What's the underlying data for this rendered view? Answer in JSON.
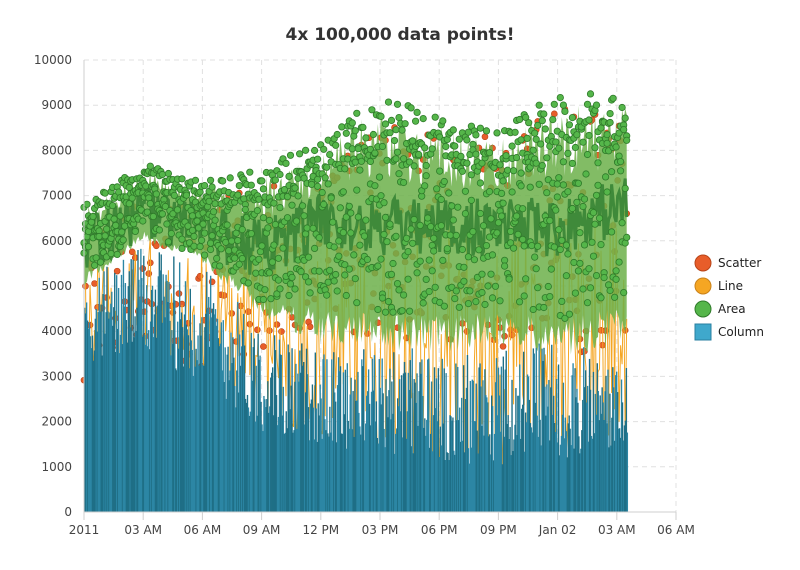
{
  "chart_data": {
    "type": "area",
    "title": "4x 100,000 data points!",
    "xlabel": "",
    "ylabel": "",
    "ylim": [
      0,
      10000
    ],
    "yticks": [
      0,
      1000,
      2000,
      3000,
      4000,
      5000,
      6000,
      7000,
      8000,
      9000,
      10000
    ],
    "x_range": [
      "2011-01-01 00:00",
      "2011-01-02 06:00"
    ],
    "x_data_range": [
      "2011-01-01 00:00",
      "2011-01-02 03:30"
    ],
    "xticks": [
      "2011",
      "03 AM",
      "06 AM",
      "09 AM",
      "12 PM",
      "03 PM",
      "06 PM",
      "09 PM",
      "Jan 02",
      "03 AM",
      "06 AM"
    ],
    "grid": true,
    "legend_position": "right",
    "series": [
      {
        "name": "Scatter",
        "type": "scatter",
        "color": "#e85d2a",
        "time": [
          "00:00",
          "03:00",
          "06:00",
          "09:00",
          "12:00",
          "15:00",
          "18:00",
          "21:00",
          "24:00",
          "27:30"
        ],
        "values_low": [
          2800,
          3000,
          3200,
          3600,
          3800,
          3700,
          3600,
          3600,
          3500,
          3500
        ],
        "values_high": [
          6000,
          7100,
          6800,
          7300,
          7600,
          8600,
          8400,
          8300,
          8900,
          9200
        ]
      },
      {
        "name": "Line",
        "type": "line",
        "color": "#f5a623",
        "time": [
          "00:00",
          "03:00",
          "06:00",
          "09:00",
          "12:00",
          "15:00",
          "18:00",
          "21:00",
          "24:00",
          "27:30"
        ],
        "values_low": [
          1500,
          2000,
          1800,
          1800,
          1000,
          0,
          0,
          0,
          0,
          1500
        ],
        "values_high": [
          5500,
          6200,
          6000,
          6300,
          6400,
          6600,
          6500,
          6400,
          6700,
          7000
        ]
      },
      {
        "name": "Area",
        "type": "area",
        "color": "#55b64a",
        "time": [
          "00:00",
          "03:00",
          "06:00",
          "09:00",
          "12:00",
          "15:00",
          "18:00",
          "21:00",
          "24:00",
          "27:30"
        ],
        "values_mean": [
          5800,
          6700,
          6300,
          5800,
          6400,
          6300,
          6300,
          6300,
          6300,
          6800
        ],
        "values_low": [
          5000,
          6000,
          5500,
          4300,
          3700,
          3600,
          3500,
          3600,
          3400,
          3600
        ],
        "values_high": [
          6800,
          7700,
          7300,
          7600,
          8200,
          9300,
          8800,
          8400,
          9400,
          9200
        ]
      },
      {
        "name": "Column",
        "type": "column",
        "color": "#3fa8cc",
        "time": [
          "00:00",
          "03:00",
          "06:00",
          "09:00",
          "12:00",
          "15:00",
          "18:00",
          "21:00",
          "24:00",
          "27:30"
        ],
        "values_mean": [
          4000,
          4300,
          3800,
          2600,
          2200,
          2100,
          2000,
          1900,
          2100,
          2000
        ],
        "values_high": [
          5500,
          6000,
          5700,
          4300,
          3700,
          3800,
          3800,
          3700,
          4100,
          3300
        ]
      }
    ]
  }
}
